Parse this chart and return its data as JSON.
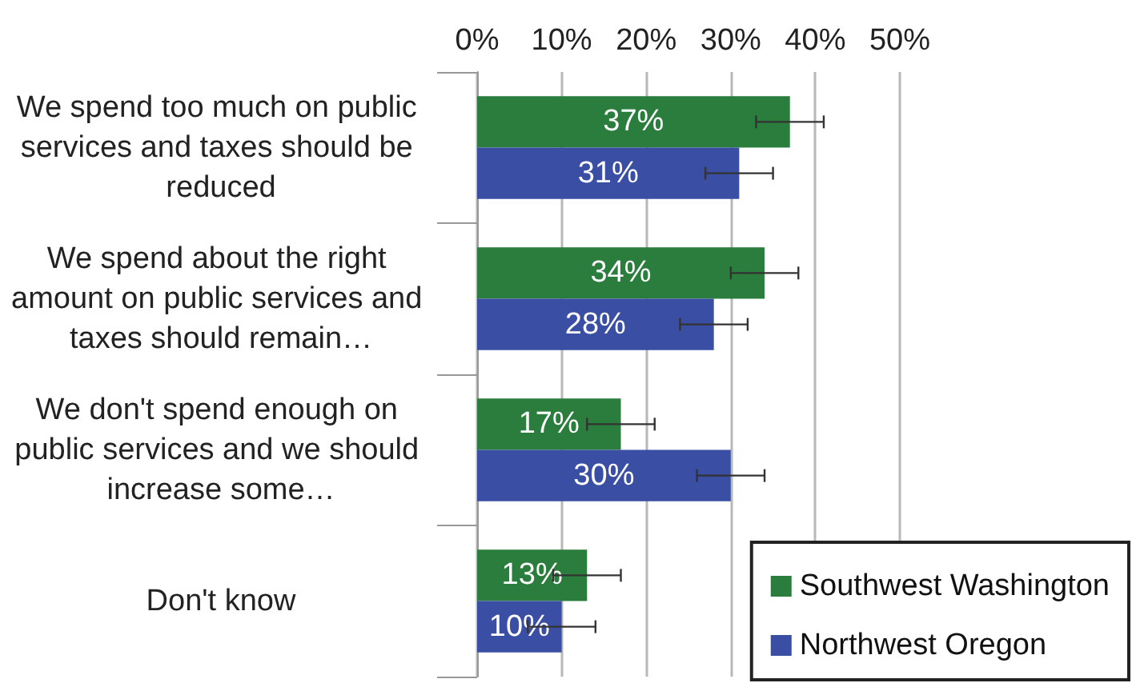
{
  "chart_data": {
    "type": "bar",
    "orientation": "horizontal",
    "categories": [
      "We spend too much on public services and taxes should be reduced",
      "We spend about the right amount on public services and taxes should remain…",
      "We don't spend enough on public services and we should increase some…",
      "Don't know"
    ],
    "series": [
      {
        "name": "Southwest Washington",
        "color": "#2a7d3c",
        "values": [
          37,
          34,
          17,
          13
        ],
        "value_labels": [
          "37%",
          "34%",
          "17%",
          "13%"
        ],
        "errors": [
          4,
          4,
          4,
          4
        ]
      },
      {
        "name": "Northwest Oregon",
        "color": "#3a4fa3",
        "values": [
          31,
          28,
          30,
          10
        ],
        "value_labels": [
          "31%",
          "28%",
          "30%",
          "10%"
        ],
        "errors": [
          4,
          4,
          4,
          4
        ]
      }
    ],
    "xlim": [
      0,
      50
    ],
    "xticks": [
      {
        "value": 0,
        "label": "0%"
      },
      {
        "value": 10,
        "label": "10%"
      },
      {
        "value": 20,
        "label": "20%"
      },
      {
        "value": 30,
        "label": "30%"
      },
      {
        "value": 40,
        "label": "40%"
      },
      {
        "value": 50,
        "label": "50%"
      }
    ],
    "grid": "x",
    "legend": "bottom right"
  }
}
